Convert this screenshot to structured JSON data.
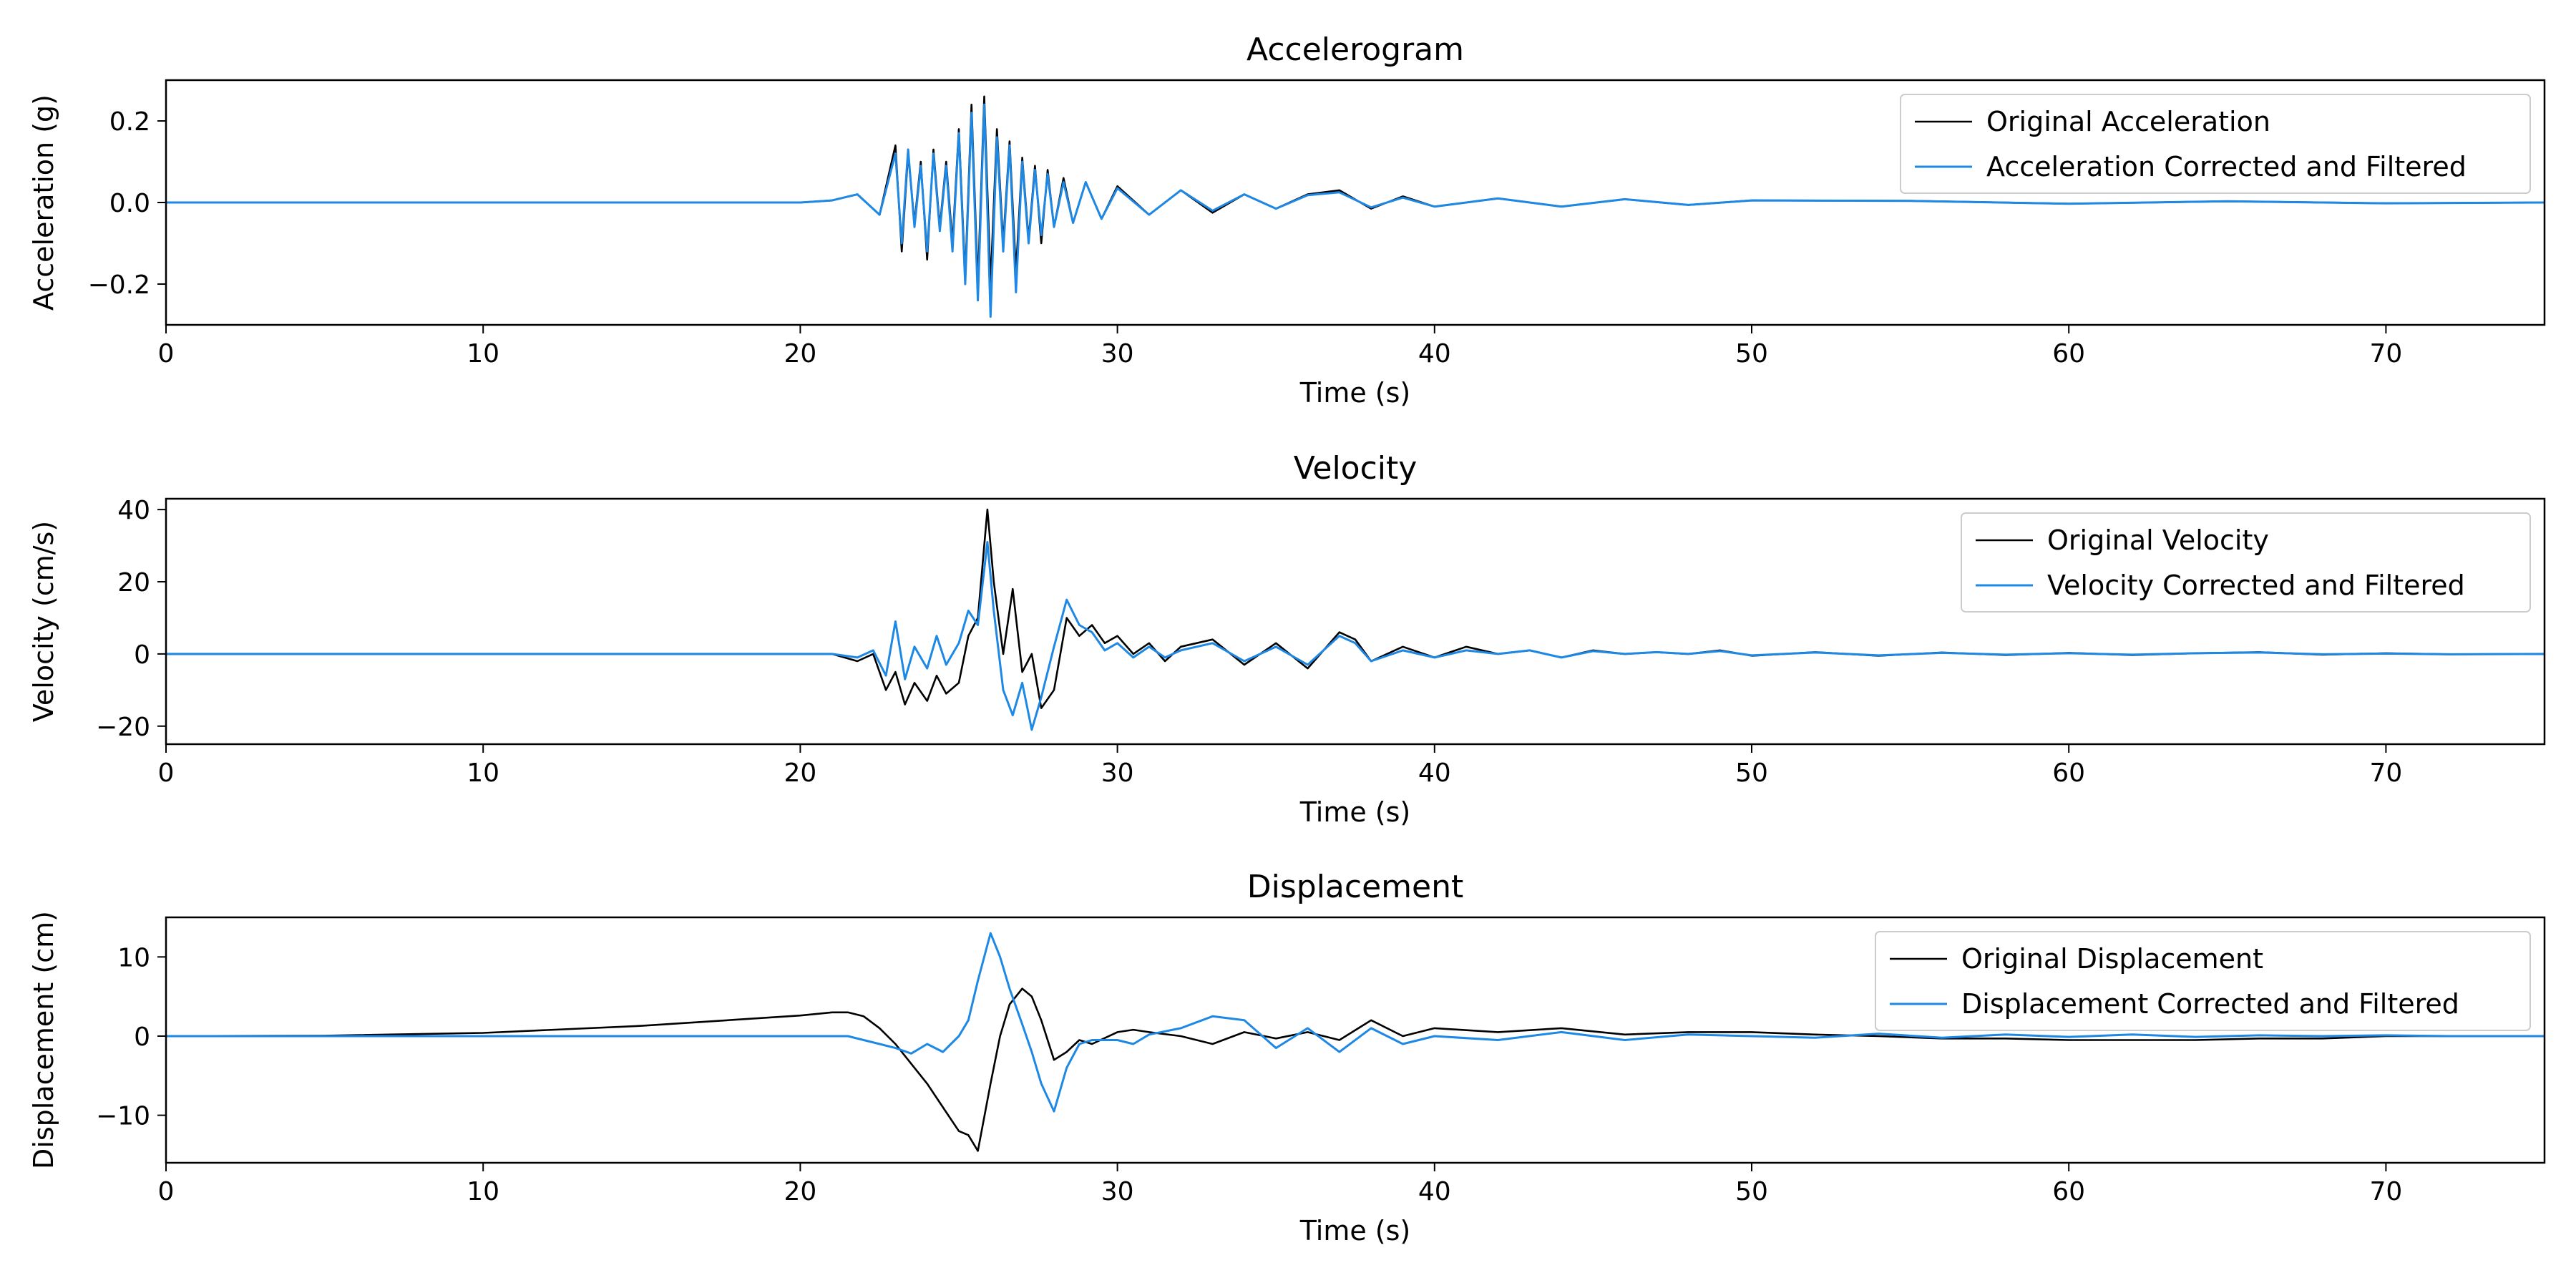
{
  "colors": {
    "original": "#000000",
    "corrected": "#1e88e5"
  },
  "chart_data": [
    {
      "type": "line",
      "title": "Accelerogram",
      "xlabel": "Time (s)",
      "ylabel": "Acceleration (g)",
      "xlim": [
        0,
        75
      ],
      "ylim": [
        -0.3,
        0.3
      ],
      "xticks": [
        0,
        10,
        20,
        30,
        40,
        50,
        60,
        70
      ],
      "yticks": [
        -0.2,
        0.0,
        0.2
      ],
      "ytick_labels": [
        "−0.2",
        "0.0",
        "0.2"
      ],
      "grid": false,
      "legend": "upper right",
      "series": [
        {
          "name": "Original Acceleration",
          "color": "#000000",
          "x": [
            0,
            20,
            21,
            21.8,
            22.5,
            23,
            23.2,
            23.4,
            23.6,
            23.8,
            24,
            24.2,
            24.4,
            24.6,
            24.8,
            25,
            25.2,
            25.4,
            25.6,
            25.8,
            26,
            26.2,
            26.4,
            26.6,
            26.8,
            27,
            27.2,
            27.4,
            27.6,
            27.8,
            28,
            28.3,
            28.6,
            29,
            29.5,
            30,
            31,
            32,
            33,
            34,
            35,
            36,
            37,
            38,
            39,
            40,
            42,
            44,
            46,
            48,
            50,
            55,
            60,
            65,
            70,
            75
          ],
          "y": [
            0,
            0,
            0.005,
            0.02,
            -0.03,
            0.14,
            -0.12,
            0.12,
            -0.05,
            0.1,
            -0.14,
            0.13,
            -0.06,
            0.1,
            -0.1,
            0.18,
            -0.18,
            0.24,
            -0.2,
            0.26,
            -0.2,
            0.18,
            -0.1,
            0.15,
            -0.17,
            0.11,
            -0.09,
            0.09,
            -0.1,
            0.08,
            -0.06,
            0.06,
            -0.05,
            0.05,
            -0.04,
            0.04,
            -0.03,
            0.03,
            -0.025,
            0.02,
            -0.015,
            0.02,
            0.03,
            -0.015,
            0.015,
            -0.01,
            0.01,
            -0.01,
            0.008,
            -0.006,
            0.005,
            0.004,
            -0.003,
            0.003,
            -0.002,
            0
          ]
        },
        {
          "name": "Acceleration Corrected and Filtered",
          "color": "#1e88e5",
          "x": [
            0,
            20,
            21,
            21.8,
            22.5,
            23,
            23.2,
            23.4,
            23.6,
            23.8,
            24,
            24.2,
            24.4,
            24.6,
            24.8,
            25,
            25.2,
            25.4,
            25.6,
            25.8,
            26,
            26.2,
            26.4,
            26.6,
            26.8,
            27,
            27.2,
            27.4,
            27.6,
            27.8,
            28,
            28.3,
            28.6,
            29,
            29.5,
            30,
            31,
            32,
            33,
            34,
            35,
            36,
            37,
            38,
            39,
            40,
            42,
            44,
            46,
            48,
            50,
            55,
            60,
            65,
            70,
            75
          ],
          "y": [
            0,
            0,
            0.005,
            0.02,
            -0.03,
            0.12,
            -0.1,
            0.13,
            -0.06,
            0.09,
            -0.12,
            0.12,
            -0.07,
            0.09,
            -0.12,
            0.17,
            -0.2,
            0.22,
            -0.24,
            0.24,
            -0.28,
            0.16,
            -0.12,
            0.14,
            -0.22,
            0.1,
            -0.1,
            0.08,
            -0.08,
            0.07,
            -0.06,
            0.05,
            -0.05,
            0.05,
            -0.04,
            0.035,
            -0.03,
            0.03,
            -0.02,
            0.02,
            -0.015,
            0.018,
            0.025,
            -0.012,
            0.012,
            -0.01,
            0.01,
            -0.01,
            0.008,
            -0.006,
            0.005,
            0.004,
            -0.003,
            0.003,
            -0.002,
            0
          ]
        }
      ]
    },
    {
      "type": "line",
      "title": "Velocity",
      "xlabel": "Time (s)",
      "ylabel": "Velocity (cm/s)",
      "xlim": [
        0,
        75
      ],
      "ylim": [
        -25,
        43
      ],
      "xticks": [
        0,
        10,
        20,
        30,
        40,
        50,
        60,
        70
      ],
      "yticks": [
        -20,
        0,
        20,
        40
      ],
      "ytick_labels": [
        "−20",
        "0",
        "20",
        "40"
      ],
      "grid": false,
      "legend": "upper right",
      "series": [
        {
          "name": "Original Velocity",
          "color": "#000000",
          "x": [
            0,
            20,
            21,
            21.8,
            22.3,
            22.7,
            23,
            23.3,
            23.6,
            24,
            24.3,
            24.6,
            25,
            25.3,
            25.6,
            25.9,
            26.1,
            26.4,
            26.7,
            27,
            27.3,
            27.6,
            28,
            28.4,
            28.8,
            29.2,
            29.6,
            30,
            30.5,
            31,
            31.5,
            32,
            33,
            34,
            35,
            36,
            37,
            37.5,
            38,
            39,
            40,
            41,
            42,
            43,
            44,
            45,
            46,
            47,
            48,
            49,
            50,
            52,
            54,
            56,
            58,
            60,
            62,
            64,
            66,
            68,
            70,
            72,
            75
          ],
          "y": [
            0,
            0,
            0,
            -2,
            0,
            -10,
            -5,
            -14,
            -8,
            -13,
            -6,
            -11,
            -8,
            5,
            10,
            40,
            20,
            0,
            18,
            -5,
            0,
            -15,
            -10,
            10,
            5,
            8,
            3,
            5,
            0,
            3,
            -2,
            2,
            4,
            -3,
            3,
            -4,
            6,
            4,
            -2,
            2,
            -1,
            2,
            0,
            1,
            -1,
            1,
            0,
            0.5,
            0,
            1,
            -0.5,
            0.5,
            -0.5,
            0.4,
            -0.3,
            0.3,
            -0.3,
            0.2,
            0.5,
            -0.2,
            0.2,
            -0.1,
            0
          ]
        },
        {
          "name": "Velocity Corrected and Filtered",
          "color": "#1e88e5",
          "x": [
            0,
            20,
            21,
            21.8,
            22.3,
            22.7,
            23,
            23.3,
            23.6,
            24,
            24.3,
            24.6,
            25,
            25.3,
            25.6,
            25.9,
            26.1,
            26.4,
            26.7,
            27,
            27.3,
            27.6,
            28,
            28.4,
            28.8,
            29.2,
            29.6,
            30,
            30.5,
            31,
            31.5,
            32,
            33,
            34,
            35,
            36,
            37,
            37.5,
            38,
            39,
            40,
            41,
            42,
            43,
            44,
            45,
            46,
            47,
            48,
            49,
            50,
            52,
            54,
            56,
            58,
            60,
            62,
            64,
            66,
            68,
            70,
            72,
            75
          ],
          "y": [
            0,
            0,
            0,
            -1,
            1,
            -6,
            9,
            -7,
            2,
            -4,
            5,
            -3,
            3,
            12,
            8,
            31,
            12,
            -10,
            -17,
            -8,
            -21,
            -12,
            2,
            15,
            8,
            6,
            1,
            3,
            -1,
            2,
            -1,
            1,
            3,
            -2,
            2,
            -3,
            5,
            3,
            -2,
            1,
            -1,
            1,
            0,
            1,
            -1,
            0.8,
            0,
            0.5,
            0,
            0.8,
            -0.4,
            0.4,
            -0.4,
            0.3,
            -0.2,
            0.2,
            -0.2,
            0.2,
            0.4,
            -0.1,
            0.1,
            -0.1,
            0
          ]
        }
      ]
    },
    {
      "type": "line",
      "title": "Displacement",
      "xlabel": "Time (s)",
      "ylabel": "Displacement (cm)",
      "xlim": [
        0,
        75
      ],
      "ylim": [
        -16,
        15
      ],
      "xticks": [
        0,
        10,
        20,
        30,
        40,
        50,
        60,
        70
      ],
      "yticks": [
        -10,
        0,
        10
      ],
      "ytick_labels": [
        "−10",
        "0",
        "10"
      ],
      "grid": false,
      "legend": "upper right",
      "series": [
        {
          "name": "Original Displacement",
          "color": "#000000",
          "x": [
            0,
            5,
            10,
            15,
            20,
            21,
            21.5,
            22,
            22.5,
            23,
            23.5,
            24,
            24.5,
            25,
            25.3,
            25.6,
            26,
            26.3,
            26.6,
            27,
            27.3,
            27.6,
            28,
            28.4,
            28.8,
            29.2,
            30,
            30.5,
            31,
            32,
            33,
            34,
            35,
            36,
            37,
            38,
            39,
            40,
            42,
            44,
            46,
            48,
            50,
            52,
            54,
            56,
            58,
            60,
            62,
            64,
            66,
            68,
            70,
            72,
            75
          ],
          "y": [
            0,
            0.05,
            0.4,
            1.3,
            2.6,
            3.0,
            3.0,
            2.5,
            1.0,
            -1.0,
            -3.5,
            -6,
            -9,
            -12,
            -12.5,
            -14.5,
            -6,
            0,
            4,
            6,
            5,
            2,
            -3,
            -2,
            -0.5,
            -1,
            0.5,
            0.8,
            0.5,
            0,
            -1,
            0.5,
            -0.3,
            0.5,
            -0.5,
            2,
            0,
            1,
            0.5,
            1,
            0.2,
            0.5,
            0.5,
            0.2,
            0,
            -0.3,
            -0.3,
            -0.5,
            -0.5,
            -0.5,
            -0.3,
            -0.3,
            0,
            0,
            0
          ]
        },
        {
          "name": "Displacement Corrected and Filtered",
          "color": "#1e88e5",
          "x": [
            0,
            5,
            10,
            15,
            20,
            21,
            21.5,
            22,
            22.5,
            23,
            23.5,
            24,
            24.5,
            25,
            25.3,
            25.6,
            26,
            26.3,
            26.6,
            27,
            27.3,
            27.6,
            28,
            28.4,
            28.8,
            29.2,
            30,
            30.5,
            31,
            32,
            33,
            34,
            35,
            36,
            37,
            38,
            39,
            40,
            42,
            44,
            46,
            48,
            50,
            52,
            54,
            56,
            58,
            60,
            62,
            64,
            66,
            68,
            70,
            72,
            75
          ],
          "y": [
            0,
            0,
            0,
            0,
            0,
            0,
            0,
            -0.5,
            -1,
            -1.5,
            -2.2,
            -1,
            -2,
            0,
            2,
            7,
            13,
            10,
            6,
            1.5,
            -2,
            -6,
            -9.5,
            -4,
            -1,
            -0.5,
            -0.5,
            -1,
            0.2,
            1,
            2.5,
            2,
            -1.5,
            1,
            -2,
            1,
            -1,
            0,
            -0.5,
            0.5,
            -0.5,
            0.2,
            0,
            -0.2,
            0.3,
            -0.2,
            0.2,
            -0.1,
            0.2,
            -0.1,
            0.1,
            0,
            0.1,
            0,
            0
          ]
        }
      ]
    }
  ]
}
